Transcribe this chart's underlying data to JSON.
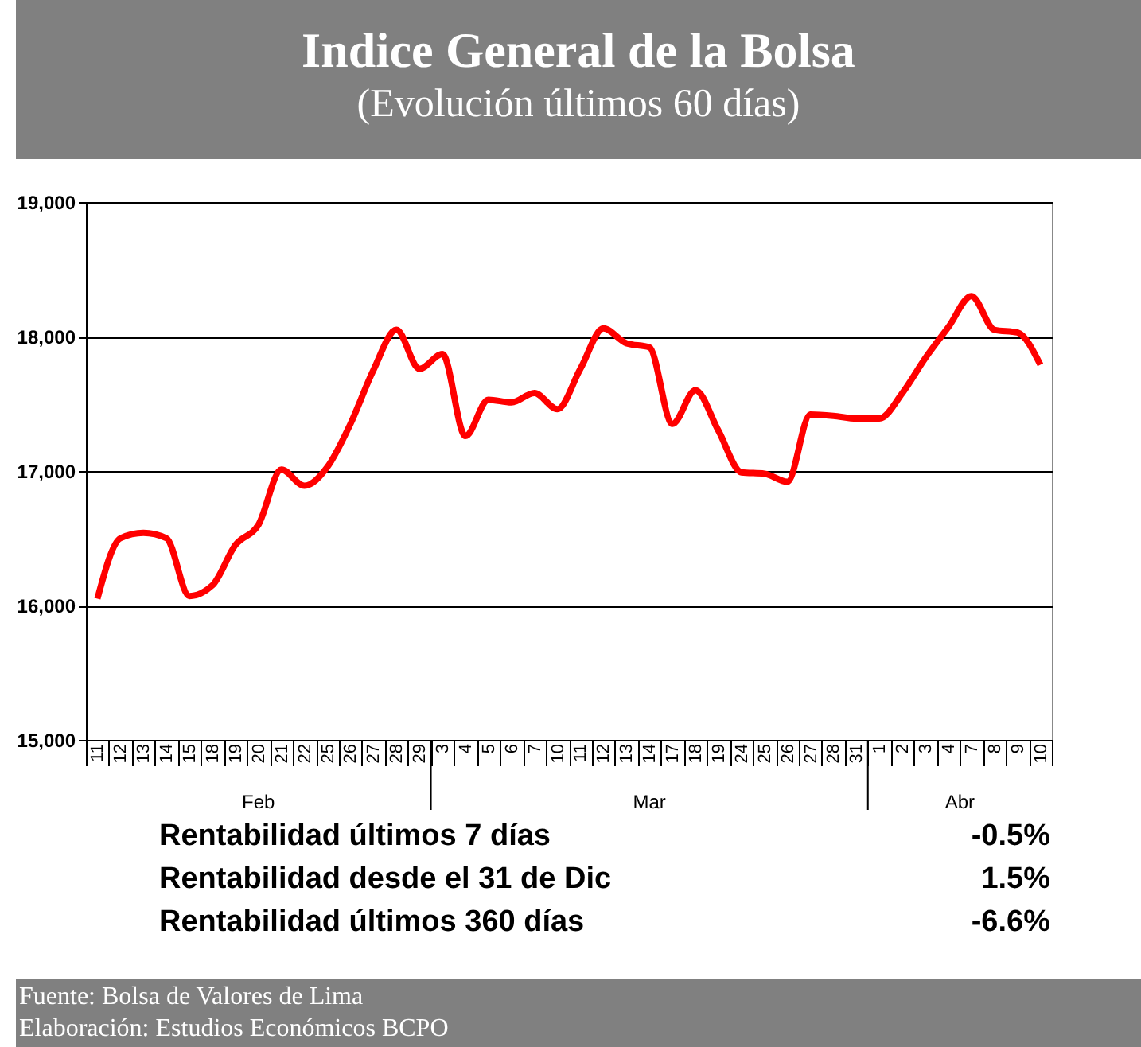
{
  "chart_data": {
    "type": "line",
    "title": "Indice General de la Bolsa",
    "subtitle": "(Evolución últimos 60 días)",
    "categories": [
      "11",
      "12",
      "13",
      "14",
      "15",
      "18",
      "19",
      "20",
      "21",
      "22",
      "25",
      "26",
      "27",
      "28",
      "29",
      "3",
      "4",
      "5",
      "6",
      "7",
      "10",
      "11",
      "12",
      "13",
      "14",
      "17",
      "18",
      "19",
      "24",
      "25",
      "26",
      "27",
      "28",
      "31",
      "1",
      "2",
      "3",
      "4",
      "7",
      "8",
      "9",
      "10"
    ],
    "series": [
      {
        "color": "#ff0000",
        "values": [
          16050,
          16500,
          16540,
          16500,
          16070,
          16150,
          16450,
          16600,
          17010,
          16890,
          17030,
          17350,
          17750,
          18050,
          17760,
          17870,
          17260,
          17530,
          17510,
          17580,
          17460,
          17760,
          18060,
          17950,
          17920,
          17350,
          17600,
          17300,
          16990,
          16980,
          16920,
          17420,
          17410,
          17390,
          17390,
          17580,
          17840,
          18070,
          18300,
          18050,
          18030,
          17790
        ]
      }
    ],
    "ylim": [
      15000,
      19000
    ],
    "yticks": [
      {
        "value": 15000,
        "label": "15,000"
      },
      {
        "value": 16000,
        "label": "16,000"
      },
      {
        "value": 17000,
        "label": "17,000"
      },
      {
        "value": 18000,
        "label": "18,000"
      },
      {
        "value": 19000,
        "label": "19,000"
      }
    ],
    "grid": "y",
    "legend": false,
    "annotations": [
      "Feb",
      "Mar",
      "Abr",
      "Rentabilidad últimos 7 días",
      "-0.5%",
      "Rentabilidad desde el 31 de Dic",
      "1.5%",
      "Rentabilidad últimos 360 días",
      "-6.6%",
      "Fuente: Bolsa de Valores de Lima",
      "Elaboración: Estudios Económicos BCPO"
    ]
  }
}
